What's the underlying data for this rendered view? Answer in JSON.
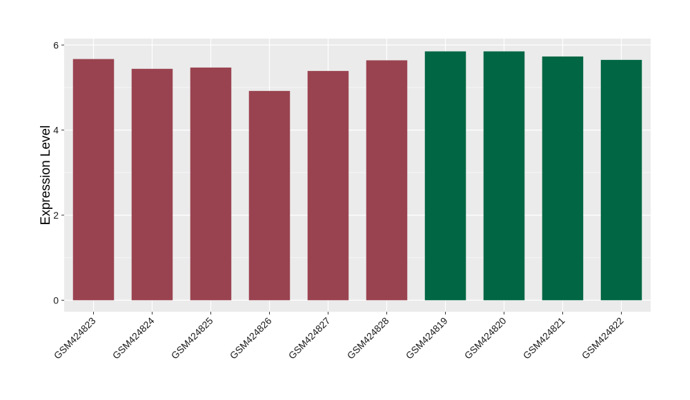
{
  "chart_data": {
    "type": "bar",
    "title": "",
    "xlabel": "",
    "ylabel": "Expression Level",
    "ylim": [
      -0.27,
      6.15
    ],
    "yticks": [
      0,
      2,
      4,
      6
    ],
    "grid": true,
    "legend": "none",
    "categories": [
      "GSM424823",
      "GSM424824",
      "GSM424825",
      "GSM424826",
      "GSM424827",
      "GSM424828",
      "GSM424819",
      "GSM424820",
      "GSM424821",
      "GSM424822"
    ],
    "values": [
      5.67,
      5.44,
      5.47,
      4.92,
      5.39,
      5.64,
      5.85,
      5.85,
      5.73,
      5.65
    ],
    "bar_colors": [
      "#9a4350",
      "#9a4350",
      "#9a4350",
      "#9a4350",
      "#9a4350",
      "#9a4350",
      "#006644",
      "#006644",
      "#006644",
      "#006644"
    ]
  },
  "colors": {
    "panel_background": "#ebebeb",
    "grid_major": "#ffffff",
    "grid_minor": "#f5f5f5",
    "tick_mark": "#333333"
  }
}
